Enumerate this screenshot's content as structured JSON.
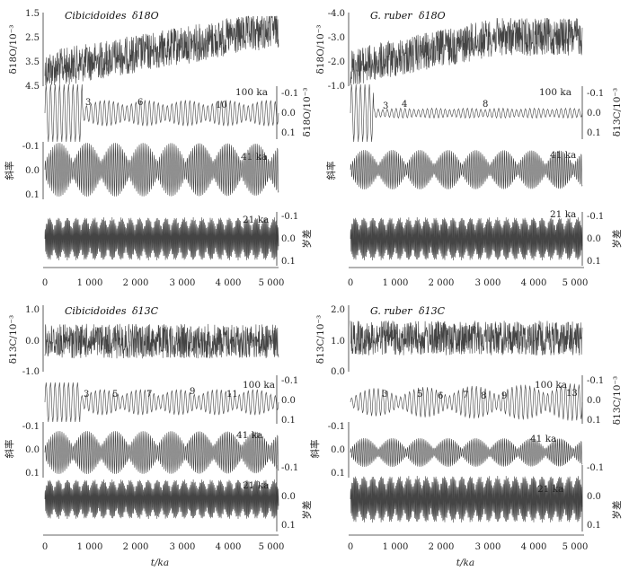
{
  "chart_data": {
    "type": "line",
    "x_axis": {
      "label": "t/ka",
      "ticks": [
        0,
        1000,
        2000,
        3000,
        4000,
        5000
      ],
      "tick_labels": [
        "0",
        "1 000",
        "2 000",
        "3 000",
        "4 000",
        "5 000"
      ],
      "range": [
        0,
        5200
      ]
    },
    "panels": [
      {
        "id": "cib-o",
        "title_species": "Cibicidoides",
        "title_isotope": "δ18O",
        "ylabel": "δ18O/10⁻³",
        "left_ticks": [
          "1.5",
          "2.5",
          "3.5",
          "4.5"
        ],
        "record": {
          "start": 4.0,
          "end": 2.3,
          "noise": 0.35
        },
        "filters": [
          {
            "period_label": "100 ka",
            "period": 100,
            "cycle_numbers": [
              "3",
              "6",
              "10"
            ],
            "ylabel": "δ18O/10⁻³",
            "right_ticks": [
              "-0.1",
              "0.0",
              "0.1"
            ]
          },
          {
            "period_label": "41 ka",
            "period": 41,
            "ylabel": "斜率",
            "left_ticks": [
              "-0.1",
              "0.0",
              "0.1"
            ]
          },
          {
            "period_label": "21 ka",
            "period": 21,
            "ylabel": "岁差",
            "right_ticks": [
              "-0.1",
              "0.0",
              "0.1"
            ]
          }
        ]
      },
      {
        "id": "rub-o",
        "title_species": "G. ruber",
        "title_isotope": "δ18O",
        "ylabel": "δ18O/10⁻³",
        "left_ticks": [
          "-4.0",
          "-3.0",
          "-2.0",
          "-1.0"
        ],
        "record": {
          "start": -2.1,
          "end": -2.8,
          "noise": 0.3
        },
        "filters": [
          {
            "period_label": "100 ka",
            "period": 100,
            "cycle_numbers": [
              "3",
              "4",
              "8"
            ],
            "ylabel": "δ13C/10⁻³",
            "right_ticks": [
              "-0.1",
              "0.0",
              "0.1"
            ]
          },
          {
            "period_label": "41 ka",
            "period": 41,
            "ylabel": "斜率"
          },
          {
            "period_label": "21 ka",
            "period": 21,
            "ylabel": "岁差",
            "right_ticks": [
              "-0.1",
              "0.0",
              "0.1"
            ]
          }
        ]
      },
      {
        "id": "cib-c",
        "title_species": "Cibicidoides",
        "title_isotope": "δ13C",
        "ylabel": "δ13C/10⁻³",
        "left_ticks": [
          "1.0",
          "0.0",
          "-1.0"
        ],
        "record": {
          "start": 0.0,
          "end": 0.0,
          "noise": 0.3
        },
        "filters": [
          {
            "period_label": "100 ka",
            "period": 100,
            "cycle_numbers": [
              "3",
              "5",
              "7",
              "9",
              "11"
            ],
            "right_ticks": [
              "-0.1",
              "0.0",
              "0.1"
            ]
          },
          {
            "period_label": "41 ka",
            "period": 41,
            "ylabel": "斜率",
            "left_ticks": [
              "-0.1",
              "0.0",
              "0.1"
            ]
          },
          {
            "period_label": "21 ka",
            "period": 21,
            "ylabel": "岁差",
            "right_ticks": [
              "-0.1",
              "0.0",
              "0.1"
            ]
          }
        ]
      },
      {
        "id": "rub-c",
        "title_species": "G. ruber",
        "title_isotope": "δ13C",
        "ylabel": "δ13C/10⁻³",
        "left_ticks": [
          "2.0",
          "1.0",
          "0.0"
        ],
        "record": {
          "start": 1.0,
          "end": 1.0,
          "noise": 0.25
        },
        "filters": [
          {
            "period_label": "100 ka",
            "period": 100,
            "cycle_numbers": [
              "3",
              "5",
              "6",
              "7",
              "8",
              "9",
              "13"
            ],
            "ylabel": "δ13C/10⁻³",
            "right_ticks": [
              "-0.1",
              "0.0",
              "0.1"
            ]
          },
          {
            "period_label": "41 ka",
            "period": 41,
            "ylabel": "斜率",
            "left_ticks": [
              "-0.1",
              "0.0",
              "0.1"
            ]
          },
          {
            "period_label": "21 ka",
            "period": 21,
            "ylabel": "岁差",
            "right_ticks": [
              "-0.1",
              "0.0",
              "0.1"
            ]
          }
        ]
      }
    ]
  }
}
